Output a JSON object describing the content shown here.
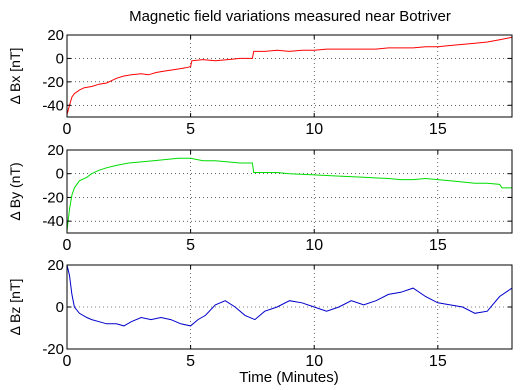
{
  "chart_data": {
    "type": "line",
    "title": "Magnetic field variations measured near Botriver",
    "xlabel": "Time (Minutes)",
    "xlim": [
      0,
      18
    ],
    "x_ticks": [
      "0",
      "5",
      "10",
      "15"
    ],
    "x_tick_values": [
      0,
      5,
      10,
      15
    ],
    "grid": true,
    "panels": [
      {
        "ylabel": "Δ Bx [nT]",
        "ylim": [
          -50,
          20
        ],
        "y_ticks": [
          "20",
          "0",
          "-20",
          "-40"
        ],
        "y_tick_values": [
          20,
          0,
          -20,
          -40
        ],
        "series": [
          {
            "color": "#ff0000",
            "x": [
              0,
              0.1,
              0.2,
              0.3,
              0.5,
              0.7,
              1.0,
              1.3,
              1.6,
              1.8,
              2.0,
              2.3,
              2.6,
              3.0,
              3.3,
              3.6,
              3.9,
              4.2,
              4.5,
              4.8,
              5.0,
              5.05,
              5.5,
              6.0,
              6.5,
              7.0,
              7.5,
              7.55,
              8.0,
              8.5,
              9.0,
              9.5,
              10.0,
              10.5,
              11.0,
              11.5,
              12.0,
              12.5,
              13.0,
              13.5,
              14.0,
              14.5,
              15.0,
              15.5,
              16.0,
              16.5,
              17.0,
              17.5,
              18.0
            ],
            "y": [
              -48,
              -40,
              -33,
              -30,
              -27,
              -25,
              -24,
              -22,
              -21,
              -19,
              -17,
              -15,
              -14,
              -13,
              -14,
              -12,
              -11,
              -10,
              -9,
              -8,
              -7,
              -2,
              -1,
              -2,
              -1,
              0,
              0,
              6,
              6,
              7,
              6,
              7,
              7,
              8,
              8,
              8,
              8,
              8,
              9,
              9,
              9,
              10,
              10,
              11,
              12,
              13,
              14,
              16,
              18
            ]
          }
        ]
      },
      {
        "ylabel": "Δ By  (nT)",
        "ylim": [
          -50,
          20
        ],
        "y_ticks": [
          "20",
          "0",
          "-20",
          "-40"
        ],
        "y_tick_values": [
          20,
          0,
          -20,
          -40
        ],
        "series": [
          {
            "color": "#00dd00",
            "x": [
              0,
              0.1,
              0.2,
              0.3,
              0.5,
              0.8,
              1.0,
              1.3,
              1.6,
              2.0,
              2.5,
              3.0,
              3.5,
              4.0,
              4.5,
              5.0,
              5.5,
              6.0,
              6.5,
              7.0,
              7.5,
              7.55,
              8.0,
              8.5,
              9.0,
              10.0,
              11.0,
              12.0,
              13.0,
              13.5,
              14.0,
              14.5,
              15.0,
              15.5,
              16.0,
              16.5,
              17.0,
              17.5,
              17.6,
              18.0
            ],
            "y": [
              -48,
              -30,
              -18,
              -12,
              -6,
              -3,
              0,
              3,
              5,
              7,
              9,
              10,
              11,
              12,
              13,
              13,
              11,
              11,
              10,
              9,
              9,
              1,
              1,
              1,
              0,
              -1,
              -2,
              -3,
              -4,
              -5,
              -5,
              -4,
              -5,
              -6,
              -7,
              -8,
              -8,
              -9,
              -12,
              -12
            ]
          }
        ]
      },
      {
        "ylabel": "Δ Bz  [nT]",
        "ylim": [
          -20,
          20
        ],
        "y_ticks": [
          "20",
          "0",
          "-20"
        ],
        "y_tick_values": [
          20,
          0,
          -20
        ],
        "series": [
          {
            "color": "#0000cc",
            "x": [
              0,
              0.1,
              0.2,
              0.3,
              0.5,
              0.8,
              1.0,
              1.3,
              1.6,
              2.0,
              2.3,
              2.6,
              3.0,
              3.4,
              3.8,
              4.2,
              4.6,
              5.0,
              5.3,
              5.6,
              6.0,
              6.4,
              6.8,
              7.2,
              7.6,
              8.0,
              8.5,
              9.0,
              9.5,
              10.0,
              10.5,
              11.0,
              11.5,
              12.0,
              12.5,
              13.0,
              13.5,
              14.0,
              14.5,
              15.0,
              15.5,
              16.0,
              16.5,
              17.0,
              17.5,
              18.0
            ],
            "y": [
              20,
              15,
              6,
              0,
              -3,
              -5,
              -6,
              -7,
              -8,
              -8,
              -9,
              -7,
              -5,
              -6,
              -5,
              -6,
              -8,
              -9,
              -6,
              -4,
              1,
              3,
              0,
              -4,
              -6,
              -2,
              0,
              3,
              2,
              0,
              -2,
              0,
              3,
              1,
              3,
              6,
              7,
              9,
              5,
              2,
              1,
              0,
              -3,
              -2,
              5,
              9
            ]
          }
        ]
      }
    ]
  }
}
